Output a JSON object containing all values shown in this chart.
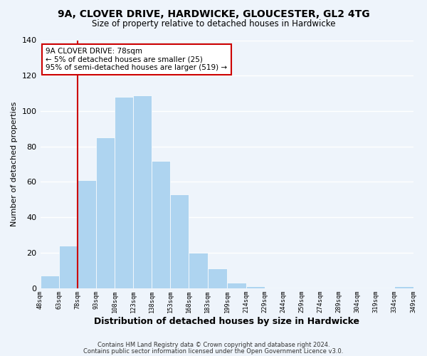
{
  "title": "9A, CLOVER DRIVE, HARDWICKE, GLOUCESTER, GL2 4TG",
  "subtitle": "Size of property relative to detached houses in Hardwicke",
  "xlabel": "Distribution of detached houses by size in Hardwicke",
  "ylabel": "Number of detached properties",
  "bar_edges": [
    48,
    63,
    78,
    93,
    108,
    123,
    138,
    153,
    168,
    183,
    199,
    214,
    229,
    244,
    259,
    274,
    289,
    304,
    319,
    334,
    349
  ],
  "bar_heights": [
    7,
    24,
    61,
    85,
    108,
    109,
    72,
    53,
    20,
    11,
    3,
    1,
    0,
    0,
    0,
    0,
    0,
    0,
    0,
    1
  ],
  "bar_color": "#aed4f0",
  "bar_edge_color": "#ffffff",
  "vline_x": 78,
  "vline_color": "#cc0000",
  "annotation_text": "9A CLOVER DRIVE: 78sqm\n← 5% of detached houses are smaller (25)\n95% of semi-detached houses are larger (519) →",
  "annotation_box_color": "#ffffff",
  "annotation_box_edge_color": "#cc0000",
  "xlim_left": 48,
  "xlim_right": 349,
  "ylim_top": 140,
  "tick_labels": [
    "48sqm",
    "63sqm",
    "78sqm",
    "93sqm",
    "108sqm",
    "123sqm",
    "138sqm",
    "153sqm",
    "168sqm",
    "183sqm",
    "199sqm",
    "214sqm",
    "229sqm",
    "244sqm",
    "259sqm",
    "274sqm",
    "289sqm",
    "304sqm",
    "319sqm",
    "334sqm",
    "349sqm"
  ],
  "tick_positions": [
    48,
    63,
    78,
    93,
    108,
    123,
    138,
    153,
    168,
    183,
    199,
    214,
    229,
    244,
    259,
    274,
    289,
    304,
    319,
    334,
    349
  ],
  "footnote1": "Contains HM Land Registry data © Crown copyright and database right 2024.",
  "footnote2": "Contains public sector information licensed under the Open Government Licence v3.0.",
  "background_color": "#eef4fb",
  "grid_color": "#ffffff",
  "yticks": [
    0,
    20,
    40,
    60,
    80,
    100,
    120,
    140
  ]
}
